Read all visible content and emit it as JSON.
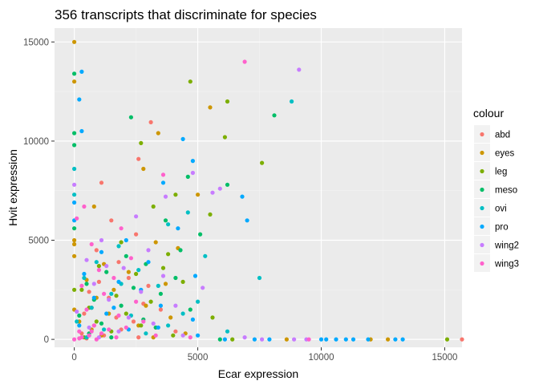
{
  "chart_data": {
    "type": "scatter",
    "title": "356 transcripts that discriminate for species",
    "xlabel": "Ecar expression",
    "ylabel": "Hvit expression",
    "xlim": [
      -800,
      15700
    ],
    "ylim": [
      -400,
      15700
    ],
    "x_ticks": [
      0,
      5000,
      10000,
      15000
    ],
    "y_ticks": [
      0,
      5000,
      10000,
      15000
    ],
    "x_tick_labels": [
      "0",
      "5000",
      "10000",
      "15000"
    ],
    "y_tick_labels": [
      "0",
      "5000",
      "10000",
      "15000"
    ],
    "grid": true,
    "legend_title": "colour",
    "legend_position": "right",
    "series": [
      {
        "name": "abd",
        "color": "#F8766D",
        "points": [
          [
            15700,
            0
          ],
          [
            3100,
            10950
          ],
          [
            2600,
            9100
          ],
          [
            1100,
            7900
          ],
          [
            1500,
            6000
          ],
          [
            2500,
            5300
          ],
          [
            900,
            4500
          ],
          [
            1800,
            3900
          ],
          [
            2200,
            3100
          ],
          [
            3000,
            2700
          ],
          [
            600,
            2400
          ],
          [
            1400,
            2100
          ],
          [
            2800,
            1800
          ],
          [
            3500,
            1500
          ],
          [
            400,
            1300
          ],
          [
            1700,
            1100
          ],
          [
            2400,
            900
          ],
          [
            800,
            700
          ],
          [
            1900,
            500
          ],
          [
            300,
            300
          ],
          [
            1200,
            200
          ],
          [
            2600,
            100
          ],
          [
            500,
            50
          ],
          [
            3300,
            600
          ],
          [
            4100,
            400
          ],
          [
            700,
            1600
          ],
          [
            1000,
            2900
          ]
        ]
      },
      {
        "name": "eyes",
        "color": "#CD9600",
        "points": [
          [
            0,
            15000
          ],
          [
            12000,
            0
          ],
          [
            5500,
            11700
          ],
          [
            3400,
            10400
          ],
          [
            0,
            13000
          ],
          [
            2800,
            8600
          ],
          [
            5000,
            7300
          ],
          [
            0,
            5000
          ],
          [
            0,
            4800
          ],
          [
            800,
            6700
          ],
          [
            3300,
            4900
          ],
          [
            4200,
            4600
          ],
          [
            0,
            4200
          ],
          [
            1200,
            3800
          ],
          [
            2200,
            3400
          ],
          [
            500,
            3000
          ],
          [
            3700,
            2800
          ],
          [
            1600,
            2500
          ],
          [
            900,
            2100
          ],
          [
            2900,
            1700
          ],
          [
            0,
            1500
          ],
          [
            1400,
            1300
          ],
          [
            3900,
            1100
          ],
          [
            200,
            900
          ],
          [
            2600,
            700
          ],
          [
            700,
            500
          ],
          [
            4500,
            300
          ],
          [
            1100,
            200
          ],
          [
            3200,
            100
          ],
          [
            12700,
            0
          ],
          [
            8600,
            0
          ]
        ]
      },
      {
        "name": "leg",
        "color": "#7CAE00",
        "points": [
          [
            4700,
            13000
          ],
          [
            6200,
            12000
          ],
          [
            7600,
            8900
          ],
          [
            15100,
            0
          ],
          [
            6100,
            10200
          ],
          [
            4100,
            7300
          ],
          [
            2700,
            9900
          ],
          [
            3200,
            6700
          ],
          [
            5500,
            6300
          ],
          [
            0,
            2500
          ],
          [
            1900,
            4900
          ],
          [
            3800,
            4300
          ],
          [
            1000,
            3700
          ],
          [
            2500,
            3300
          ],
          [
            4400,
            2900
          ],
          [
            300,
            2500
          ],
          [
            1700,
            2200
          ],
          [
            3100,
            1900
          ],
          [
            600,
            1600
          ],
          [
            2100,
            1300
          ],
          [
            5600,
            1100
          ],
          [
            900,
            900
          ],
          [
            2700,
            700
          ],
          [
            1500,
            400
          ],
          [
            4000,
            200
          ],
          [
            6400,
            0
          ],
          [
            400,
            100
          ],
          [
            3600,
            3600
          ]
        ]
      },
      {
        "name": "meso",
        "color": "#00BE67",
        "points": [
          [
            0,
            13400
          ],
          [
            8100,
            11300
          ],
          [
            2300,
            11200
          ],
          [
            6200,
            7800
          ],
          [
            0,
            10400
          ],
          [
            0,
            9800
          ],
          [
            4600,
            8200
          ],
          [
            3700,
            6000
          ],
          [
            5100,
            5300
          ],
          [
            2100,
            4200
          ],
          [
            0,
            5600
          ],
          [
            2900,
            3800
          ],
          [
            1300,
            3400
          ],
          [
            4100,
            3100
          ],
          [
            500,
            2800
          ],
          [
            2400,
            2600
          ],
          [
            3500,
            2300
          ],
          [
            800,
            2000
          ],
          [
            1900,
            1700
          ],
          [
            4700,
            1500
          ],
          [
            200,
            1200
          ],
          [
            2800,
            1000
          ],
          [
            1100,
            800
          ],
          [
            3300,
            600
          ],
          [
            600,
            300
          ],
          [
            5900,
            0
          ],
          [
            1500,
            100
          ],
          [
            4300,
            4500
          ]
        ]
      },
      {
        "name": "ovi",
        "color": "#00BFC4",
        "points": [
          [
            8800,
            12000
          ],
          [
            7500,
            3100
          ],
          [
            0,
            8600
          ],
          [
            0,
            7300
          ],
          [
            3800,
            5800
          ],
          [
            1800,
            4700
          ],
          [
            4600,
            6400
          ],
          [
            900,
            3900
          ],
          [
            2600,
            3500
          ],
          [
            400,
            3100
          ],
          [
            3400,
            2700
          ],
          [
            1500,
            2300
          ],
          [
            5000,
            1900
          ],
          [
            700,
            1600
          ],
          [
            2300,
            1200
          ],
          [
            100,
            900
          ],
          [
            3800,
            700
          ],
          [
            1200,
            500
          ],
          [
            2900,
            300
          ],
          [
            500,
            100
          ],
          [
            6200,
            400
          ],
          [
            4400,
            1300
          ],
          [
            1900,
            2800
          ],
          [
            5300,
            4200
          ]
        ]
      },
      {
        "name": "pro",
        "color": "#00A9FF",
        "points": [
          [
            300,
            13500
          ],
          [
            200,
            12100
          ],
          [
            300,
            10500
          ],
          [
            4400,
            10100
          ],
          [
            4800,
            9000
          ],
          [
            0,
            6900
          ],
          [
            0,
            6000
          ],
          [
            3600,
            7900
          ],
          [
            6800,
            7200
          ],
          [
            7000,
            6000
          ],
          [
            13000,
            0
          ],
          [
            13300,
            0
          ],
          [
            10000,
            0
          ],
          [
            10200,
            0
          ],
          [
            11000,
            0
          ],
          [
            11300,
            0
          ],
          [
            11900,
            0
          ],
          [
            10600,
            0
          ],
          [
            7300,
            0
          ],
          [
            7900,
            0
          ],
          [
            6100,
            0
          ],
          [
            2100,
            5000
          ],
          [
            1100,
            4400
          ],
          [
            3000,
            3900
          ],
          [
            400,
            3300
          ],
          [
            1800,
            2900
          ],
          [
            2700,
            2500
          ],
          [
            800,
            2100
          ],
          [
            3500,
            1700
          ],
          [
            1300,
            1300
          ],
          [
            4800,
            1000
          ],
          [
            200,
            700
          ],
          [
            2200,
            500
          ],
          [
            600,
            200
          ],
          [
            5000,
            200
          ],
          [
            4200,
            5600
          ],
          [
            3400,
            600
          ],
          [
            1600,
            1600
          ],
          [
            4900,
            3200
          ]
        ]
      },
      {
        "name": "wing2",
        "color": "#C77CFF",
        "points": [
          [
            9100,
            13600
          ],
          [
            5600,
            7400
          ],
          [
            0,
            7800
          ],
          [
            4800,
            8400
          ],
          [
            3700,
            7200
          ],
          [
            5900,
            7600
          ],
          [
            2500,
            6200
          ],
          [
            1100,
            5000
          ],
          [
            3000,
            4500
          ],
          [
            500,
            4000
          ],
          [
            2000,
            3600
          ],
          [
            3600,
            3200
          ],
          [
            800,
            2800
          ],
          [
            2700,
            2400
          ],
          [
            1400,
            2000
          ],
          [
            4100,
            1700
          ],
          [
            100,
            1400
          ],
          [
            2200,
            1100
          ],
          [
            3200,
            800
          ],
          [
            600,
            600
          ],
          [
            1800,
            400
          ],
          [
            4400,
            200
          ],
          [
            1000,
            100
          ],
          [
            8900,
            0
          ],
          [
            9400,
            0
          ],
          [
            7600,
            0
          ],
          [
            6900,
            100
          ],
          [
            5200,
            2600
          ],
          [
            1300,
            3700
          ]
        ]
      },
      {
        "name": "wing3",
        "color": "#FF61CC",
        "points": [
          [
            6900,
            14000
          ],
          [
            3600,
            8300
          ],
          [
            100,
            6100
          ],
          [
            400,
            6700
          ],
          [
            1900,
            5600
          ],
          [
            700,
            4800
          ],
          [
            2300,
            4100
          ],
          [
            1000,
            3500
          ],
          [
            1600,
            3100
          ],
          [
            300,
            2700
          ],
          [
            1200,
            2300
          ],
          [
            2500,
            1900
          ],
          [
            500,
            1500
          ],
          [
            1800,
            1200
          ],
          [
            2800,
            900
          ],
          [
            800,
            700
          ],
          [
            1400,
            500
          ],
          [
            200,
            400
          ],
          [
            1100,
            300
          ],
          [
            600,
            200
          ],
          [
            300,
            100
          ],
          [
            900,
            0
          ],
          [
            0,
            0
          ],
          [
            200,
            50
          ],
          [
            700,
            400
          ],
          [
            9500,
            0
          ],
          [
            1700,
            100
          ],
          [
            2100,
            600
          ],
          [
            3300,
            200
          ],
          [
            4700,
            100
          ]
        ]
      }
    ]
  }
}
